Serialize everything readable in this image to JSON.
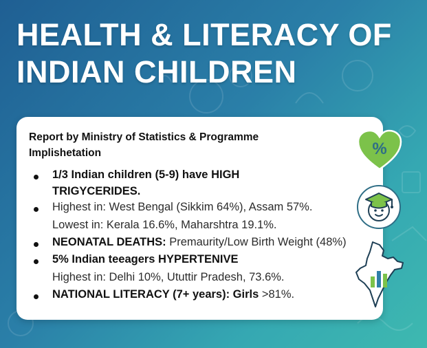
{
  "title": "HEALTH & LITERACY OF INDIAN CHILDREN",
  "report": "Report by Ministry of Statistics & Programme Implishetation",
  "bullets": [
    {
      "line1": "1/3 Indian children (5-9) have HIGH",
      "line2": "TRIGYCERIDES."
    },
    {
      "line1": "Highest in: West Bengal (Sikkim 64%), Assam 57%.",
      "line2": "Lowest in: Kerala 16.6%, Maharshtra 19.1%."
    },
    {
      "bold": "NEONATAL DEATHS:",
      "rest": " Premaurity/Low Birth Weight (48%)"
    },
    {
      "line1": "5% Indian teeagers HYPERTENIVE",
      "line2": "Highest in: Delhi 10%, Ututtir Pradesh, 73.6%."
    },
    {
      "bold": "NATIONAL LITERACY (7+ years): Girls",
      "rest": " >81%."
    }
  ],
  "icons": {
    "percent_symbol": "%",
    "heart_color": "#7cc24a",
    "percent_color": "#2f6e86",
    "map_color": "#ffffff",
    "bar_colors": [
      "#7cc24a",
      "#2f7fa8",
      "#7cc24a"
    ]
  }
}
